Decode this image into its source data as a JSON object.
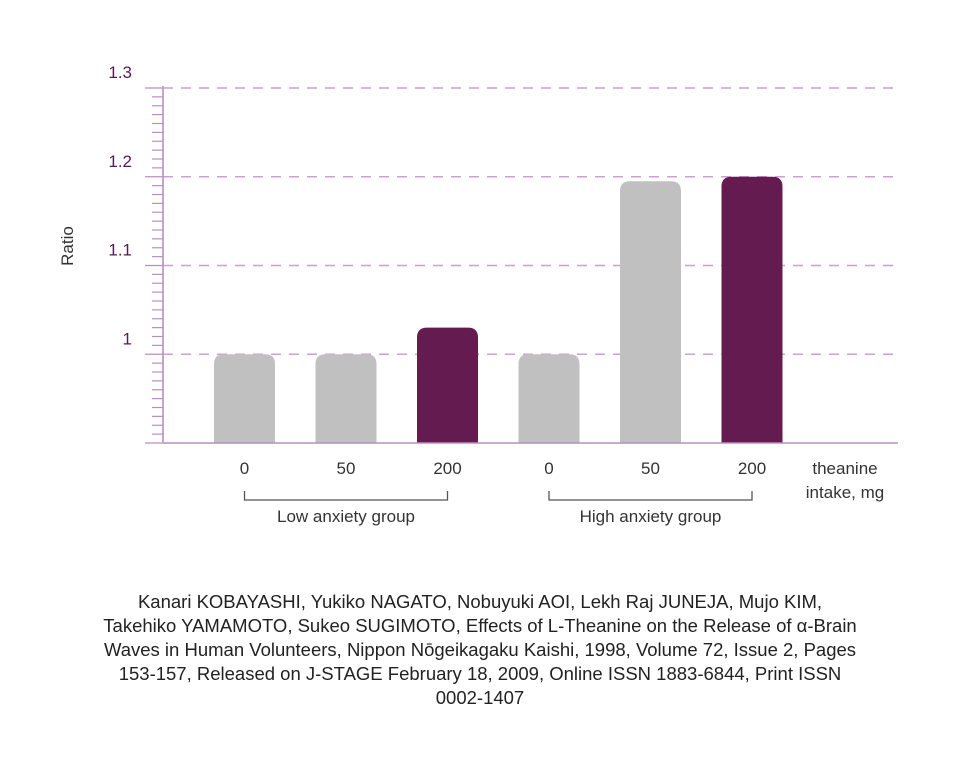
{
  "chart_data": {
    "type": "bar",
    "ylabel": "Ratio",
    "ylim": [
      0.9,
      1.3
    ],
    "y_ticks": [
      {
        "value": 1,
        "label": "1"
      },
      {
        "value": 1.1,
        "label": "1.1"
      },
      {
        "value": 1.2,
        "label": "1.2"
      },
      {
        "value": 1.3,
        "label": "1.3"
      }
    ],
    "grid": true,
    "categories": [
      "0",
      "50",
      "200",
      "0",
      "50",
      "200"
    ],
    "values": [
      1.0,
      1.0,
      1.03,
      1.0,
      1.195,
      1.2
    ],
    "highlight": [
      false,
      false,
      true,
      false,
      false,
      true
    ],
    "x_unit_label_lines": [
      "theanine",
      "intake, mg"
    ],
    "groups": [
      {
        "label": "Low anxiety group",
        "first_index": 0,
        "last_index": 2
      },
      {
        "label": "High anxiety group",
        "first_index": 3,
        "last_index": 5
      }
    ],
    "colors": {
      "bar": "#c0c0c0",
      "highlight": "#641b50",
      "grid": "#c9a0cf",
      "axis": "#b98fc0",
      "tick_text": "#5a1a50"
    }
  },
  "citation": "Kanari KOBAYASHI, Yukiko NAGATO, Nobuyuki AOI, Lekh Raj JUNEJA, Mujo KIM, Takehiko YAMAMOTO, Sukeo SUGIMOTO, Effects of L-Theanine on the Release of α-Brain Waves in Human Volunteers, Nippon Nōgeikagaku Kaishi, 1998, Volume 72, Issue 2, Pages 153-157, Released on J-STAGE February 18, 2009, Online ISSN 1883-6844, Print ISSN 0002-1407"
}
